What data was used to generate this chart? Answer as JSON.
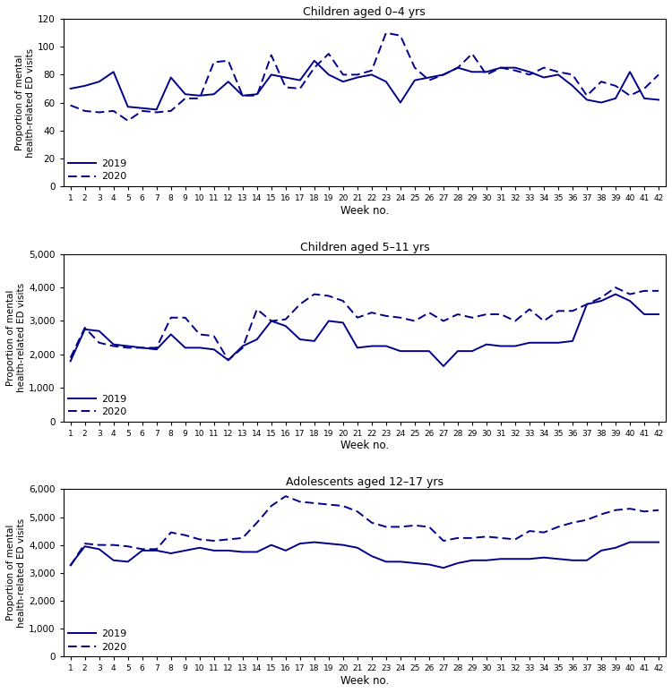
{
  "line_color": "#00008B",
  "panels": [
    {
      "title": "Children aged 0–4 yrs",
      "ylabel": "Proportion of mental\nhealth-related ED visits",
      "xlabel": "Week no.",
      "ylim": [
        0,
        120
      ],
      "yticks": [
        0,
        20,
        40,
        60,
        80,
        100,
        120
      ],
      "weeks": [
        1,
        2,
        3,
        4,
        5,
        6,
        7,
        8,
        9,
        10,
        11,
        12,
        13,
        14,
        15,
        16,
        17,
        18,
        19,
        20,
        21,
        22,
        23,
        24,
        25,
        26,
        27,
        28,
        29,
        30,
        31,
        32,
        33,
        34,
        35,
        36,
        37,
        38,
        39,
        40,
        41,
        42
      ],
      "y2019": [
        70,
        72,
        75,
        82,
        57,
        56,
        55,
        78,
        66,
        65,
        66,
        75,
        65,
        66,
        80,
        78,
        76,
        90,
        80,
        75,
        78,
        80,
        75,
        60,
        76,
        78,
        80,
        85,
        82,
        82,
        85,
        85,
        82,
        78,
        80,
        72,
        62,
        60,
        63,
        82,
        63,
        62
      ],
      "y2020": [
        58,
        54,
        53,
        54,
        47,
        54,
        53,
        54,
        63,
        63,
        89,
        90,
        65,
        65,
        94,
        71,
        70,
        85,
        95,
        80,
        80,
        83,
        110,
        108,
        85,
        76,
        80,
        85,
        95,
        80,
        85,
        83,
        80,
        85,
        82,
        80,
        65,
        75,
        72,
        65,
        70,
        80
      ]
    },
    {
      "title": "Children aged 5–11 yrs",
      "ylabel": "Proportion of mental\nhealth-related ED visits",
      "xlabel": "Week no.",
      "ylim": [
        0,
        5000
      ],
      "yticks": [
        0,
        1000,
        2000,
        3000,
        4000,
        5000
      ],
      "weeks": [
        1,
        2,
        3,
        4,
        5,
        6,
        7,
        8,
        9,
        10,
        11,
        12,
        13,
        14,
        15,
        16,
        17,
        18,
        19,
        20,
        21,
        22,
        23,
        24,
        25,
        26,
        27,
        28,
        29,
        30,
        31,
        32,
        33,
        34,
        35,
        36,
        37,
        38,
        39,
        40,
        41,
        42
      ],
      "y2019": [
        1800,
        2750,
        2700,
        2300,
        2250,
        2200,
        2150,
        2600,
        2200,
        2200,
        2150,
        1830,
        2250,
        2450,
        3000,
        2850,
        2450,
        2400,
        3000,
        2950,
        2200,
        2250,
        2250,
        2100,
        2100,
        2100,
        1650,
        2100,
        2100,
        2300,
        2250,
        2250,
        2350,
        2350,
        2350,
        2400,
        3500,
        3600,
        3800,
        3600,
        3200,
        3200
      ],
      "y2020": [
        1900,
        2800,
        2350,
        2250,
        2200,
        2200,
        2200,
        3100,
        3100,
        2600,
        2550,
        1830,
        2200,
        3350,
        3000,
        3050,
        3500,
        3800,
        3750,
        3600,
        3100,
        3250,
        3150,
        3100,
        3000,
        3250,
        3000,
        3200,
        3100,
        3200,
        3200,
        3000,
        3350,
        3000,
        3300,
        3300,
        3500,
        3700,
        4000,
        3800,
        3900,
        3900
      ]
    },
    {
      "title": "Adolescents aged 12–17 yrs",
      "ylabel": "Proportion of mental\nhealth-related ED visits",
      "xlabel": "Week no.",
      "ylim": [
        0,
        6000
      ],
      "yticks": [
        0,
        1000,
        2000,
        3000,
        4000,
        5000,
        6000
      ],
      "weeks": [
        1,
        2,
        3,
        4,
        5,
        6,
        7,
        8,
        9,
        10,
        11,
        12,
        13,
        14,
        15,
        16,
        17,
        18,
        19,
        20,
        21,
        22,
        23,
        24,
        25,
        26,
        27,
        28,
        29,
        30,
        31,
        32,
        33,
        34,
        35,
        36,
        37,
        38,
        39,
        40,
        41,
        42
      ],
      "y2019": [
        3280,
        3950,
        3850,
        3450,
        3400,
        3800,
        3800,
        3700,
        3800,
        3900,
        3800,
        3800,
        3750,
        3750,
        4000,
        3800,
        4050,
        4100,
        4050,
        4000,
        3900,
        3600,
        3400,
        3400,
        3350,
        3300,
        3180,
        3350,
        3450,
        3450,
        3500,
        3500,
        3500,
        3550,
        3500,
        3450,
        3450,
        3800,
        3900,
        4100,
        4100,
        4100
      ],
      "y2020": [
        3250,
        4050,
        4000,
        4000,
        3950,
        3850,
        3850,
        4450,
        4350,
        4200,
        4150,
        4200,
        4250,
        4800,
        5400,
        5750,
        5550,
        5500,
        5450,
        5400,
        5200,
        4800,
        4650,
        4650,
        4700,
        4650,
        4150,
        4250,
        4250,
        4300,
        4250,
        4200,
        4500,
        4450,
        4650,
        4800,
        4900,
        5100,
        5250,
        5300,
        5200,
        5250
      ]
    }
  ],
  "figsize": [
    7.5,
    7.74
  ],
  "dpi": 100
}
